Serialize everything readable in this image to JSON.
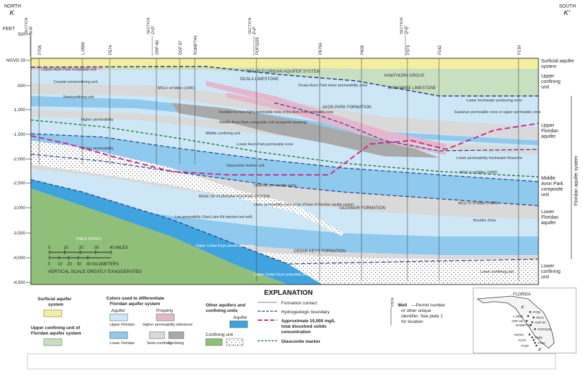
{
  "header": {
    "north": "NORTH",
    "south": "SOUTH",
    "k_left": "K",
    "k_right": "K'",
    "feet": "FEET",
    "ngvd": "NGVD 29"
  },
  "sections": [
    {
      "title": "SECTION",
      "code": "N-N'"
    },
    {
      "title": "SECTION",
      "code": "O-O'"
    },
    {
      "title": "SECTION",
      "code": "P-P'"
    },
    {
      "title": "SECTION",
      "code": "Q-Q'"
    }
  ],
  "wells": [
    "P705",
    "L-0599",
    "P574",
    "ORF-60",
    "OSF-97",
    "ROMP74X",
    "POF0225",
    "P679A",
    "P609",
    "P373",
    "P162",
    "P130"
  ],
  "depth_ticks": [
    "500",
    "NGVD 29",
    "-500",
    "-1,000",
    "-1,500",
    "-2,000",
    "-2,500",
    "-3,000",
    "-3,500",
    "-4,000",
    "-4,500"
  ],
  "layer_labels": {
    "lisbon": "Lisbon-Avon Park composite unit",
    "coastal": "Coastal semiconfining unit",
    "semiconfining": "Semiconfining unit",
    "higher_perm_1": "Higher permeability",
    "higher_perm_2": "Higher permeability",
    "mcu1": "MCU I of Miller (1986)",
    "top_floridan": "TOP OF FLORIDAN AQUIFER SYSTEM",
    "ocala": "OCALA LIMESTONE",
    "ocala_avon": "Ocala-Avon Park lower permeability zone",
    "hawthorn": "HAWTHORN GROUP",
    "suwannee": "SUWANNEE LIMESTONE",
    "avon_park": "AVON PARK FORMATION",
    "lower_fresh": "Lower freshwater producing zone",
    "suwannee_perm": "Suwanee permeable zone or upper permeable zone",
    "transition": "Transition to more highly permeable rocks of the Avon Park permeable zone",
    "middle_avon": "Middle Avon Park composite unit (evaporite bearing)",
    "middle_conf": "Middle confining unit",
    "lower_avon": "Lower Avon Park permeable zone",
    "glauconite": "Glauconite marker unit",
    "lower_perm_fresh": "Lower permeability freshwater flowzone",
    "mcu2": "MCU II of Miller (1986)",
    "oldsmar_zone": "Oldsmar permeable zone",
    "mcu3": "MCU VI of Miller (1986)",
    "boulder": "Boulder Zone",
    "oldsmar_form": "OLDSMAR FORMATION",
    "lower_perm_rocks": "Lower permeability rocks at top of base of Floridan aquifer system",
    "base_floridan": "BASE OF FLORIDAN AQUIFER SYSTEM",
    "cedar_keys": "CEDAR KEYS FORMATION",
    "low_perm_note": "Low permeability (Sand Lake Rd injection test well)",
    "lower_conf_unit": "Lower confining unit",
    "lower_cedar": "Lower Cedar Keys anhydrite zone",
    "upper_cedar": "Upper Cedar Keys permeable zone",
    "tablek": "TABLE ROCKS"
  },
  "right_units": {
    "surficial": "Surficial aquifer system",
    "upper_confining": "Upper confining unit",
    "upper_floridan": "Upper Floridan aquifer",
    "middle_avon": "Middle Avon Park composite unit",
    "lower_floridan": "Lower Floridan aquifer",
    "lower_confining": "Lower confining unit",
    "floridan_system": "Floridan aquifer system"
  },
  "scale": {
    "miles_ticks": [
      "0",
      "10",
      "20",
      "30",
      "40 MILES"
    ],
    "km_ticks": [
      "0",
      "10",
      "20",
      "30",
      "40 KILOMETERS"
    ],
    "note": "VERTICAL SCALE GREATLY EXAGGERATED"
  },
  "explanation": {
    "title": "EXPLANATION",
    "surficial_label": "Surficial aquifer system",
    "upper_conf_label": "Upper confining unit of Floridan aquifer system",
    "colors_title": "Colors used to differentiate Floridan aquifer system",
    "aquifer_head": "Aquifer",
    "property_head": "Property",
    "upper_floridan": "Upper Floridan",
    "higher_perm_dol": "Higher permeability dolostone",
    "lower_floridan": "Lower Floridan",
    "semi_confining": "Semi-confining",
    "confining": "Confining",
    "other_title": "Other aquifers and confining units",
    "other_aquifer": "Aquifer",
    "confining_unit": "Confining unit",
    "formation_contact": "Formation contact",
    "hydro_boundary": "Hydrogeologic boundary",
    "tds_line": "Approximate 10,000 mg/L total dissolved solids concentration",
    "glauconite_marker": "Glauconite marker",
    "well_sample": "P574",
    "well_title": "Well",
    "well_desc": "—Permit number or other unique identifier. See plate 1 for location"
  },
  "inset": {
    "state": "FLORIDA",
    "wells": [
      "P705",
      "L-0599",
      "P574",
      "ORF-60",
      "OSF-97",
      "ROMP74X",
      "POF0225",
      "P679A",
      "P609",
      "P373",
      "P162",
      "P130"
    ],
    "k_label": "K",
    "k2_label": "K'"
  },
  "colors": {
    "surficial": "#f4eea0",
    "upper_confining": "#c9e0c0",
    "upper_floridan": "#cde7f7",
    "lower_floridan": "#8fcaee",
    "semi_confining": "#d9d9d9",
    "confining": "#a9a9a9",
    "higher_perm": "#e5b7cd",
    "other_aquifer": "#3fa3df",
    "confining_unit": "#8fbf78",
    "tds_line": "#cc2a8a",
    "glauconite": "#1f7a3a",
    "hydro_boundary": "#1b3f86"
  }
}
